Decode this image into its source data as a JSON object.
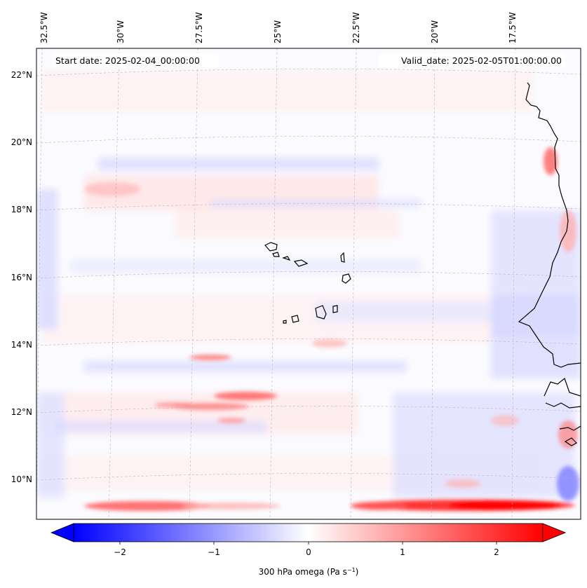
{
  "map": {
    "start_label": "Start date: 2025-02-04_00:00:00",
    "valid_label": "Valid_date: 2025-02-05T01:00:00.00",
    "lon_labels": [
      "32.5°W",
      "30°W",
      "27.5°W",
      "25°W",
      "22.5°W",
      "20°W",
      "17.5°W"
    ],
    "lat_labels": [
      "22°N",
      "20°N",
      "18°N",
      "16°N",
      "14°N",
      "12°N",
      "10°N"
    ],
    "field": "300 hPa omega",
    "units": "Pa s",
    "units_exp": "−1"
  },
  "colorbar": {
    "ticks": [
      "−2",
      "−1",
      "0",
      "1",
      "2"
    ],
    "min": -2.6,
    "max": 2.6,
    "low_color": "#0000ff",
    "mid_color": "#ffffff",
    "high_color": "#ff0000"
  },
  "colors": {
    "land_outline": "#000000",
    "grid": "#b5b5b5",
    "background": "#fbfbff"
  }
}
